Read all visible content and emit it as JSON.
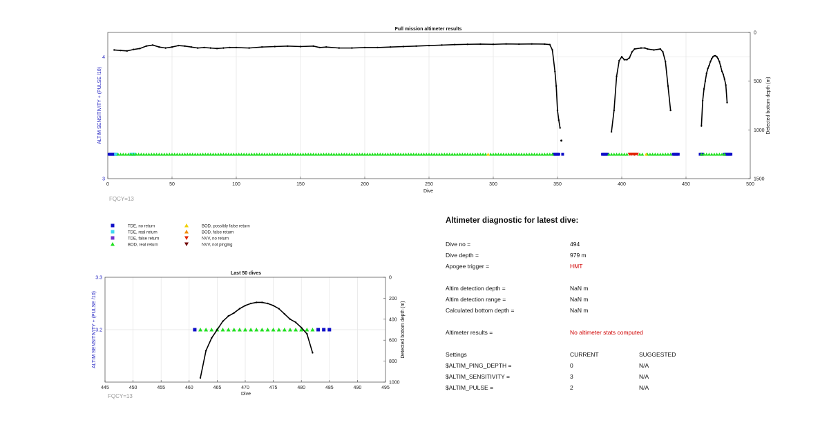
{
  "chart_data": [
    {
      "type": "scatter",
      "title": "Full mission altimeter results",
      "xlabel": "Dive",
      "ylabel": "ALTIM SENSITIVITY + (PULSE /10)",
      "y2label": "Detected bottom depth (m)",
      "xlim": [
        0,
        500
      ],
      "ylim": [
        3,
        4.2
      ],
      "y2lim": [
        0,
        1500
      ],
      "y2_reversed": true,
      "xticks": [
        0,
        50,
        100,
        150,
        200,
        250,
        300,
        350,
        400,
        450,
        500
      ],
      "yticks": [
        3,
        4
      ],
      "y2ticks": [
        0,
        500,
        1000,
        1500
      ],
      "grid": true,
      "annotation": "FQCY=13",
      "colors": {
        "tde_no": "#1010c8",
        "tde_real": "#3fd7f0",
        "tde_false": "#7030d0",
        "bod_real": "#20e020",
        "bod_possibly_false": "#f0d000",
        "bod_false": "#f08c00",
        "nvv_no": "#e02000",
        "nvv_not_pinging": "#700000",
        "depth": "#000000"
      },
      "series": [
        {
          "marker": "tde_no",
          "y": 3.2,
          "x": [
            1,
            2,
            3,
            4,
            5,
            6,
            347,
            348,
            349,
            350,
            351,
            354,
            385,
            386,
            387,
            388,
            389,
            440,
            441,
            442,
            443,
            444,
            461,
            462,
            463,
            480,
            481,
            482,
            483,
            484,
            485
          ]
        },
        {
          "marker": "tde_real",
          "y": 3.2,
          "x": [
            6,
            7,
            18,
            19,
            20,
            21
          ]
        },
        {
          "marker": "bod_real",
          "y": 3.2,
          "x": [
            8,
            10,
            12,
            14,
            16,
            18,
            20,
            22,
            24,
            26,
            28,
            30,
            32,
            34,
            36,
            38,
            40,
            42,
            44,
            46,
            48,
            50,
            52,
            54,
            56,
            58,
            60,
            62,
            64,
            66,
            68,
            70,
            72,
            74,
            76,
            78,
            80,
            82,
            84,
            86,
            88,
            90,
            92,
            94,
            96,
            98,
            100,
            102,
            104,
            106,
            108,
            110,
            112,
            114,
            116,
            118,
            120,
            122,
            124,
            126,
            128,
            130,
            132,
            134,
            136,
            138,
            140,
            142,
            144,
            146,
            148,
            150,
            152,
            154,
            156,
            158,
            160,
            162,
            164,
            166,
            168,
            170,
            172,
            174,
            176,
            178,
            180,
            182,
            184,
            186,
            188,
            190,
            192,
            194,
            196,
            198,
            200,
            202,
            204,
            206,
            208,
            210,
            212,
            214,
            216,
            218,
            220,
            222,
            224,
            226,
            228,
            230,
            232,
            234,
            236,
            238,
            240,
            242,
            244,
            246,
            248,
            250,
            252,
            254,
            256,
            258,
            260,
            262,
            264,
            266,
            268,
            270,
            272,
            274,
            276,
            278,
            280,
            282,
            284,
            286,
            288,
            290,
            292,
            294,
            298,
            300,
            302,
            304,
            306,
            308,
            310,
            312,
            314,
            316,
            318,
            320,
            322,
            324,
            326,
            328,
            330,
            332,
            334,
            336,
            338,
            340,
            342,
            344,
            346,
            390,
            392,
            394,
            396,
            398,
            400,
            402,
            404,
            414,
            416,
            420,
            422,
            424,
            426,
            428,
            430,
            432,
            434,
            436,
            438,
            462,
            464,
            466,
            468,
            470,
            472,
            474,
            476,
            478,
            480
          ]
        },
        {
          "marker": "bod_possibly_false",
          "y": 3.2,
          "x": [
            296,
            419
          ]
        },
        {
          "marker": "nvv_no",
          "y": 3.2,
          "x": [
            406,
            407,
            408,
            409,
            410,
            411,
            412
          ]
        },
        {
          "name": "Detected bottom depth",
          "axis": "y2",
          "style": "line",
          "x": [
            5,
            10,
            15,
            20,
            25,
            30,
            35,
            40,
            45,
            50,
            55,
            60,
            65,
            70,
            75,
            80,
            85,
            90,
            95,
            100,
            110,
            120,
            130,
            140,
            150,
            160,
            165,
            170,
            180,
            190,
            200,
            210,
            220,
            230,
            240,
            250,
            260,
            270,
            280,
            290,
            300,
            310,
            320,
            330,
            340,
            344,
            346,
            348,
            349,
            350,
            351,
            352
          ],
          "y": [
            180,
            185,
            190,
            175,
            165,
            140,
            130,
            150,
            160,
            150,
            135,
            140,
            150,
            160,
            155,
            160,
            165,
            160,
            155,
            155,
            160,
            150,
            145,
            140,
            145,
            140,
            155,
            150,
            160,
            160,
            155,
            155,
            150,
            145,
            140,
            135,
            130,
            125,
            122,
            120,
            122,
            118,
            120,
            118,
            120,
            125,
            180,
            400,
            550,
            800,
            900,
            980
          ]
        },
        {
          "name": "Detected bottom depth",
          "axis": "y2",
          "style": "line",
          "x": [
            392,
            394,
            396,
            398,
            400,
            402,
            404,
            406,
            408,
            410,
            415,
            418,
            420,
            425,
            430,
            432,
            434,
            436,
            438
          ],
          "y": [
            1020,
            800,
            450,
            290,
            250,
            280,
            280,
            260,
            200,
            170,
            160,
            160,
            170,
            180,
            170,
            200,
            300,
            550,
            800
          ]
        },
        {
          "name": "Detected bottom depth",
          "axis": "y2",
          "style": "line",
          "x": [
            462,
            463,
            464,
            465,
            466,
            467,
            468,
            469,
            470,
            471,
            472,
            473,
            474,
            475,
            476,
            477,
            478,
            479,
            480,
            481,
            482
          ],
          "y": [
            960,
            700,
            580,
            500,
            420,
            370,
            340,
            300,
            270,
            250,
            240,
            240,
            250,
            270,
            300,
            350,
            400,
            430,
            480,
            540,
            720
          ]
        },
        {
          "name": "Detected bottom depth",
          "axis": "y2",
          "style": "point",
          "x": [
            353
          ],
          "y": [
            1110
          ]
        }
      ]
    },
    {
      "type": "scatter",
      "title": "Last 50 dives",
      "xlabel": "Dive",
      "ylabel": "ALTIM SENSITIVITY + (PULSE /10)",
      "y2label": "Detected bottom depth (m)",
      "xlim": [
        445,
        495
      ],
      "ylim": [
        3.1,
        3.3
      ],
      "y2lim": [
        0,
        1000
      ],
      "y2_reversed": true,
      "xticks": [
        445,
        450,
        455,
        460,
        465,
        470,
        475,
        480,
        485,
        490,
        495
      ],
      "yticks": [
        3.2,
        3.3
      ],
      "y2ticks": [
        0,
        200,
        400,
        600,
        800,
        1000
      ],
      "grid": true,
      "annotation": "FQCY=13",
      "series": [
        {
          "marker": "tde_no",
          "y": 3.2,
          "x": [
            461,
            483,
            484,
            485
          ]
        },
        {
          "marker": "bod_real",
          "y": 3.2,
          "x": [
            462,
            463,
            464,
            465,
            466,
            467,
            468,
            469,
            470,
            471,
            472,
            473,
            474,
            475,
            476,
            477,
            478,
            479,
            480,
            481,
            482
          ]
        },
        {
          "name": "Detected bottom depth",
          "axis": "y2",
          "style": "line",
          "x": [
            462,
            463,
            464,
            465,
            466,
            467,
            468,
            469,
            470,
            471,
            472,
            473,
            474,
            475,
            476,
            477,
            478,
            479,
            480,
            481,
            482
          ],
          "y": [
            960,
            700,
            580,
            500,
            420,
            370,
            340,
            300,
            270,
            250,
            240,
            240,
            250,
            270,
            300,
            350,
            400,
            430,
            480,
            540,
            720
          ]
        }
      ]
    }
  ],
  "legend": {
    "col1": [
      {
        "marker": "tde_no",
        "label": "TDE, no return"
      },
      {
        "marker": "tde_real",
        "label": "TDE, real return"
      },
      {
        "marker": "tde_false",
        "label": "TDE, false return"
      },
      {
        "marker": "bod_real",
        "label": "BOD, real return"
      }
    ],
    "col2": [
      {
        "marker": "bod_possibly_false",
        "label": "BOD, possibly false return"
      },
      {
        "marker": "bod_false",
        "label": "BOD, false return"
      },
      {
        "marker": "nvv_no",
        "label": "NVV, no return"
      },
      {
        "marker": "nvv_not_pinging",
        "label": "NVV, not pinging"
      }
    ]
  },
  "diagnostic": {
    "title": "Altimeter diagnostic for latest dive:",
    "rows": [
      {
        "label": "Dive no =",
        "value": "494"
      },
      {
        "label": "Dive depth =",
        "value": "979 m"
      },
      {
        "label": "Apogee trigger =",
        "value": "HMT",
        "value_color": "#d00000"
      },
      {
        "label": "Altim detection depth =",
        "value": "NaN m"
      },
      {
        "label": "Altim detection range =",
        "value": "NaN m"
      },
      {
        "label": "Calculated bottom depth =",
        "value": "NaN m"
      },
      {
        "label": "Altimeter results =",
        "value": "No altimeter stats computed",
        "value_color": "#d00000"
      },
      {
        "label": "Settings",
        "value": "CURRENT",
        "suggested": "SUGGESTED"
      },
      {
        "label": "$ALTIM_PING_DEPTH =",
        "value": "0",
        "suggested": "N/A"
      },
      {
        "label": "$ALTIM_SENSITIVITY =",
        "value": "3",
        "suggested": "N/A"
      },
      {
        "label": "$ALTIM_PULSE =",
        "value": "2",
        "suggested": "N/A"
      }
    ]
  }
}
